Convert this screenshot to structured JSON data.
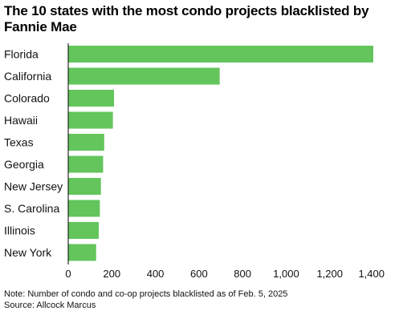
{
  "chart_data": {
    "type": "bar",
    "orientation": "horizontal",
    "title": "The 10 states with the most condo projects blacklisted by Fannie Mae",
    "categories": [
      "Florida",
      "California",
      "Colorado",
      "Hawaii",
      "Texas",
      "Georgia",
      "New Jersey",
      "S. Carolina",
      "Illinois",
      "New York"
    ],
    "values": [
      1400,
      695,
      210,
      205,
      165,
      160,
      150,
      145,
      140,
      128
    ],
    "xlim": [
      0,
      1400
    ],
    "xticks": [
      0,
      200,
      400,
      600,
      800,
      1000,
      1200,
      1400
    ],
    "xtick_labels": [
      "0",
      "200",
      "400",
      "600",
      "800",
      "1,000",
      "1,200",
      "1,400"
    ],
    "xlabel": "",
    "ylabel": "",
    "grid": false,
    "bar_color": "#63c55c"
  },
  "footer": {
    "note": "Note: Number of condo and co-op projects blacklisted as of Feb. 5, 2025",
    "source": "Source: Allcock Marcus"
  }
}
